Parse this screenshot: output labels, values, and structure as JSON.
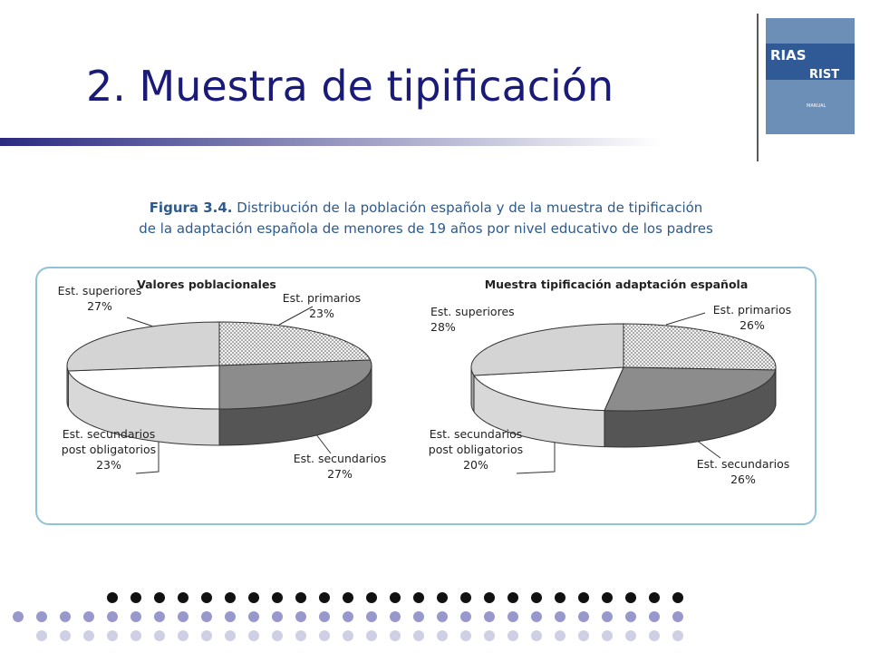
{
  "slide_title": "2. Muestra de tipificación",
  "cover": {
    "title1": "RIAS",
    "title2": "RIST",
    "label": "MANUAL"
  },
  "figure": {
    "label": "Figura 3.4.",
    "lines": [
      "Distribución de la población española y de la muestra de tipificación",
      "de la adaptación española de menores de 19 años por nivel educativo de los padres"
    ]
  },
  "chart_data": [
    {
      "type": "pie",
      "title": "Valores poblacionales",
      "categories": [
        "Est. primarios",
        "Est. secundarios",
        "Est. secundarios post obligatorios",
        "Est. superiores"
      ],
      "values": [
        23,
        27,
        23,
        27
      ],
      "value_labels": [
        "23%",
        "27%",
        "23%",
        "27%"
      ],
      "colors": [
        "dots",
        "#8c8c8c",
        "#ffffff",
        "#d4d4d4"
      ]
    },
    {
      "type": "pie",
      "title": "Muestra tipificación adaptación española",
      "categories": [
        "Est. primarios",
        "Est. secundarios",
        "Est. secundarios post obligatorios",
        "Est. superiores"
      ],
      "values": [
        26,
        26,
        20,
        28
      ],
      "value_labels": [
        "26%",
        "26%",
        "20%",
        "28%"
      ],
      "colors": [
        "dots",
        "#8c8c8c",
        "#ffffff",
        "#d4d4d4"
      ]
    }
  ]
}
